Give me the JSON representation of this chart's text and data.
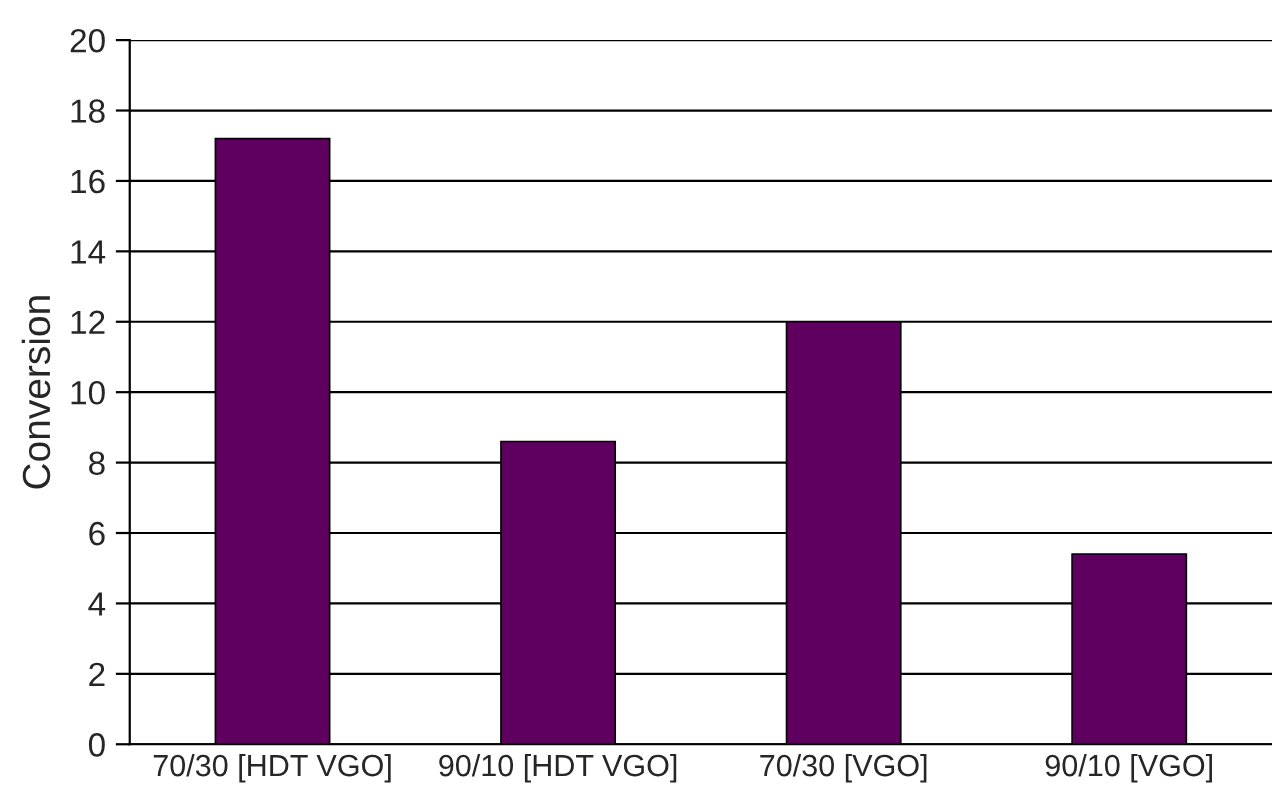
{
  "chart_data": {
    "type": "bar",
    "ylabel": "Conversion",
    "categories": [
      "70/30 [HDT VGO]",
      "90/10 [HDT VGO]",
      "70/30 [VGO]",
      "90/10 [VGO]"
    ],
    "values": [
      17.2,
      8.6,
      12.0,
      5.4
    ],
    "color": "#5f0060",
    "ylim": [
      0,
      20
    ],
    "yticks": [
      0,
      2,
      4,
      6,
      8,
      10,
      12,
      14,
      16,
      18,
      20
    ],
    "grid": "y",
    "legend": false
  }
}
